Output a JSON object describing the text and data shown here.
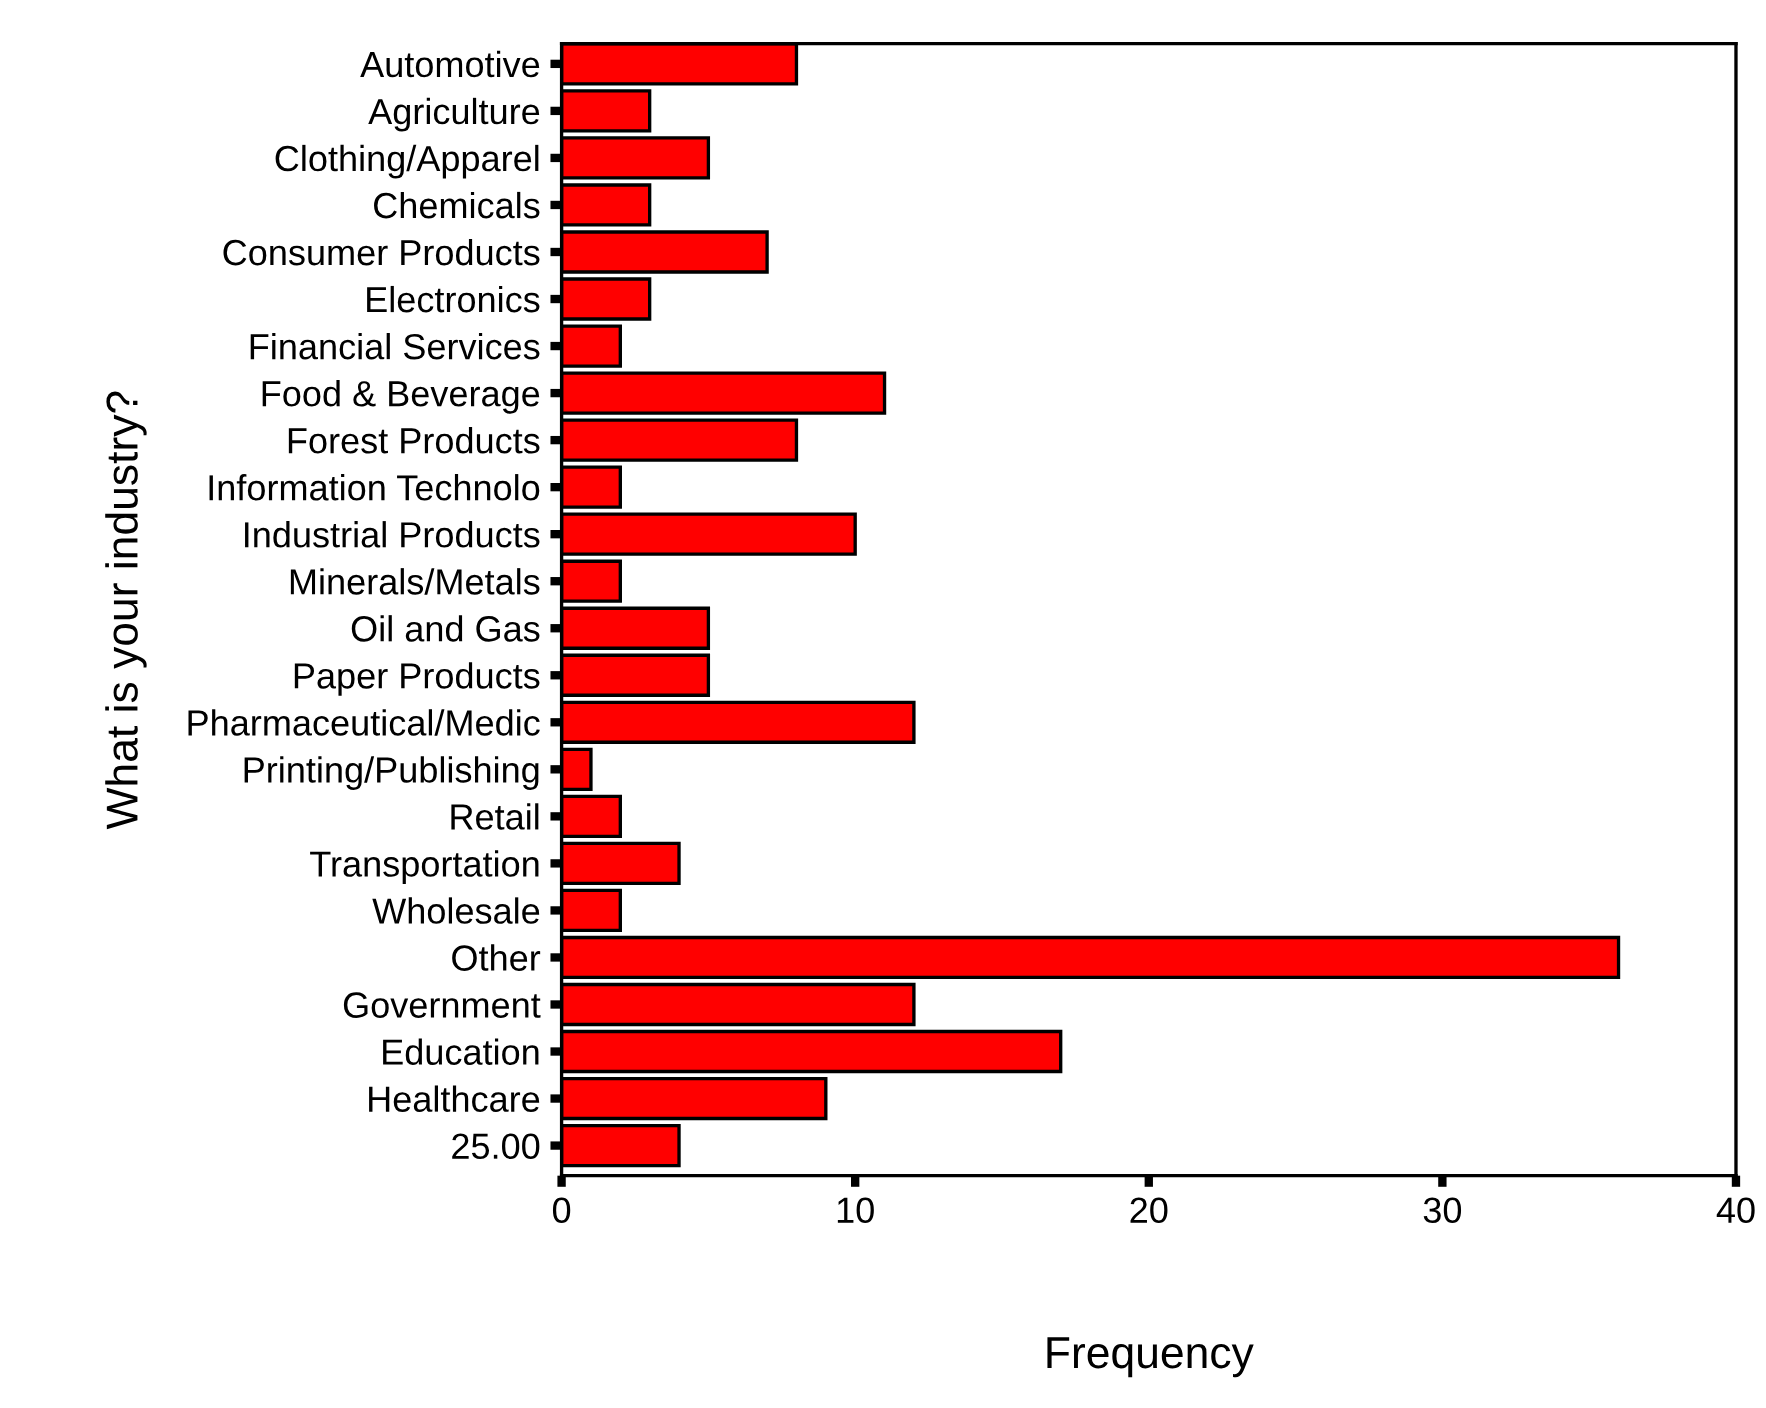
{
  "chart_data": {
    "type": "bar",
    "orientation": "horizontal",
    "xlabel": "Frequency",
    "ylabel": "What is your industry?",
    "categories": [
      "Automotive",
      "Agriculture",
      "Clothing/Apparel",
      "Chemicals",
      "Consumer Products",
      "Electronics",
      "Financial Services",
      "Food & Beverage",
      "Forest Products",
      "Information Technolo",
      "Industrial Products",
      "Minerals/Metals",
      "Oil and Gas",
      "Paper Products",
      "Pharmaceutical/Medic",
      "Printing/Publishing",
      "Retail",
      "Transportation",
      "Wholesale",
      "Other",
      "Government",
      "Education",
      "Healthcare",
      "25.00"
    ],
    "values": [
      8,
      3,
      5,
      3,
      7,
      3,
      2,
      11,
      8,
      2,
      10,
      2,
      5,
      5,
      12,
      1,
      2,
      4,
      2,
      36,
      12,
      17,
      9,
      4
    ],
    "color": "#ff0000",
    "xlim": [
      0,
      40
    ],
    "xticks": [
      0,
      10,
      20,
      30,
      40
    ],
    "grid": false,
    "legend": false
  }
}
